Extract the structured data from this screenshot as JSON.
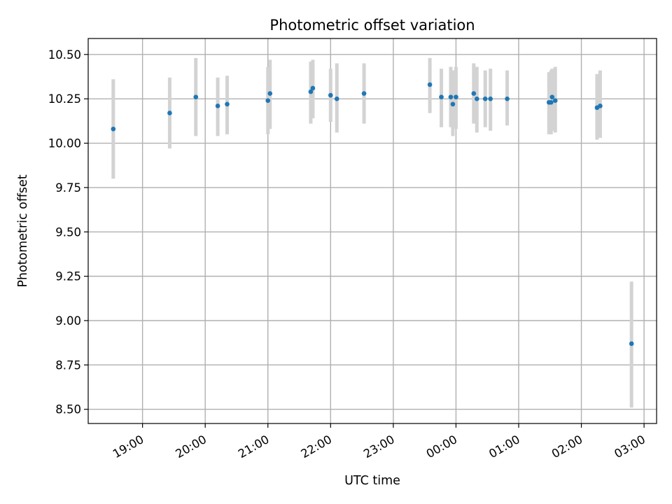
{
  "chart_data": {
    "type": "scatter",
    "title": "Photometric offset variation",
    "xlabel": "UTC time",
    "ylabel": "Photometric offset",
    "x_unit": "UTC, session starting 18:00",
    "xlim": [
      "18:08",
      "03:12"
    ],
    "ylim": [
      8.42,
      10.59
    ],
    "x_ticks": [
      "19:00",
      "20:00",
      "21:00",
      "22:00",
      "23:00",
      "00:00",
      "01:00",
      "02:00",
      "03:00"
    ],
    "y_ticks": [
      "8.50",
      "8.75",
      "9.00",
      "9.25",
      "9.50",
      "9.75",
      "10.00",
      "10.25",
      "10.50"
    ],
    "grid": true,
    "marker_color": "#1f77b4",
    "errorbar_color": "#d3d3d3",
    "series": [
      {
        "points": [
          {
            "t": "18:32",
            "y": 10.08,
            "lo": 9.8,
            "hi": 10.36
          },
          {
            "t": "19:26",
            "y": 10.17,
            "lo": 9.97,
            "hi": 10.37
          },
          {
            "t": "19:51",
            "y": 10.26,
            "lo": 10.04,
            "hi": 10.48
          },
          {
            "t": "20:12",
            "y": 10.21,
            "lo": 10.04,
            "hi": 10.37
          },
          {
            "t": "20:21",
            "y": 10.22,
            "lo": 10.05,
            "hi": 10.38
          },
          {
            "t": "21:00",
            "y": 10.24,
            "lo": 10.05,
            "hi": 10.43
          },
          {
            "t": "21:02",
            "y": 10.28,
            "lo": 10.08,
            "hi": 10.47
          },
          {
            "t": "21:41",
            "y": 10.29,
            "lo": 10.11,
            "hi": 10.46
          },
          {
            "t": "21:43",
            "y": 10.31,
            "lo": 10.14,
            "hi": 10.47
          },
          {
            "t": "22:00",
            "y": 10.27,
            "lo": 10.12,
            "hi": 10.42
          },
          {
            "t": "22:06",
            "y": 10.25,
            "lo": 10.06,
            "hi": 10.45
          },
          {
            "t": "22:32",
            "y": 10.28,
            "lo": 10.11,
            "hi": 10.45
          },
          {
            "t": "23:35",
            "y": 10.33,
            "lo": 10.17,
            "hi": 10.48
          },
          {
            "t": "23:46",
            "y": 10.26,
            "lo": 10.09,
            "hi": 10.42
          },
          {
            "t": "23:55",
            "y": 10.26,
            "lo": 10.09,
            "hi": 10.43
          },
          {
            "t": "23:57",
            "y": 10.22,
            "lo": 10.04,
            "hi": 10.41
          },
          {
            "t": "00:00",
            "y": 10.26,
            "lo": 10.08,
            "hi": 10.43
          },
          {
            "t": "00:17",
            "y": 10.28,
            "lo": 10.11,
            "hi": 10.45
          },
          {
            "t": "00:20",
            "y": 10.25,
            "lo": 10.06,
            "hi": 10.43
          },
          {
            "t": "00:28",
            "y": 10.25,
            "lo": 10.09,
            "hi": 10.41
          },
          {
            "t": "00:33",
            "y": 10.25,
            "lo": 10.07,
            "hi": 10.42
          },
          {
            "t": "00:49",
            "y": 10.25,
            "lo": 10.1,
            "hi": 10.41
          },
          {
            "t": "01:29",
            "y": 10.23,
            "lo": 10.05,
            "hi": 10.4
          },
          {
            "t": "01:31",
            "y": 10.23,
            "lo": 10.05,
            "hi": 10.41
          },
          {
            "t": "01:32",
            "y": 10.26,
            "lo": 10.07,
            "hi": 10.42
          },
          {
            "t": "01:35",
            "y": 10.24,
            "lo": 10.06,
            "hi": 10.43
          },
          {
            "t": "02:15",
            "y": 10.2,
            "lo": 10.02,
            "hi": 10.39
          },
          {
            "t": "02:18",
            "y": 10.21,
            "lo": 10.03,
            "hi": 10.41
          },
          {
            "t": "02:48",
            "y": 8.87,
            "lo": 8.51,
            "hi": 9.22
          }
        ]
      }
    ]
  }
}
